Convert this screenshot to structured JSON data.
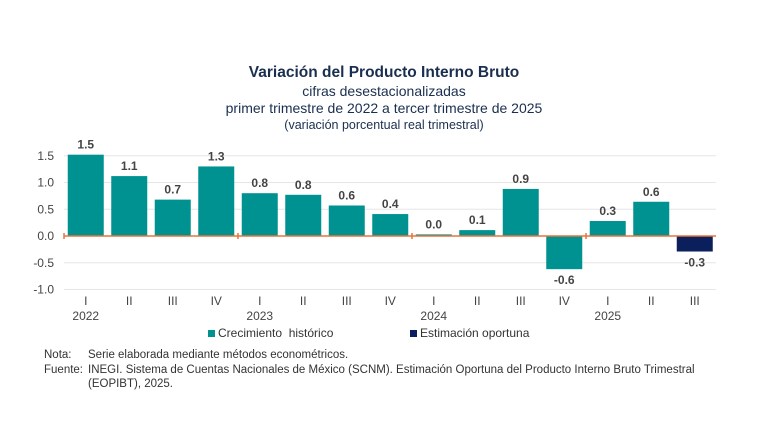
{
  "title": "Variación del Producto Interno Bruto",
  "subtitle1": "cifras desestacionalizadas",
  "subtitle2": "primer trimestre de 2022 a tercer trimestre de 2025",
  "subtitle3": "(variación porcentual real trimestral)",
  "chart_data": {
    "type": "bar",
    "categories": [
      "I",
      "II",
      "III",
      "IV",
      "I",
      "II",
      "III",
      "IV",
      "I",
      "II",
      "III",
      "IV",
      "I",
      "II",
      "III"
    ],
    "years": [
      {
        "label": "2022",
        "index": 0
      },
      {
        "label": "2023",
        "index": 4
      },
      {
        "label": "2024",
        "index": 8
      },
      {
        "label": "2025",
        "index": 12
      }
    ],
    "values": [
      1.5,
      1.1,
      0.7,
      1.3,
      0.8,
      0.8,
      0.6,
      0.4,
      0.0,
      0.1,
      0.9,
      -0.6,
      0.3,
      0.6,
      -0.3
    ],
    "heights": [
      1.52,
      1.12,
      0.68,
      1.3,
      0.8,
      0.77,
      0.57,
      0.41,
      0.03,
      0.11,
      0.88,
      -0.62,
      0.28,
      0.64,
      -0.29
    ],
    "series_kind": [
      "h",
      "h",
      "h",
      "h",
      "h",
      "h",
      "h",
      "h",
      "h",
      "h",
      "h",
      "h",
      "h",
      "h",
      "e"
    ],
    "ylim": [
      -1.0,
      1.5
    ],
    "yticks": [
      "1.5",
      "1.0",
      "0.5",
      "0.0",
      "-0.5",
      "-1.0"
    ],
    "grid": true,
    "legend": [
      {
        "name": "Crecimiento  histórico",
        "color": "#009191"
      },
      {
        "name": "Estimación oportuna",
        "color": "#0b1f5c"
      }
    ],
    "legend_position": "bottom",
    "zero_line_color": "#e8743b"
  },
  "notes": {
    "nota_label": "Nota:",
    "nota_text": "Serie elaborada mediante métodos econométricos.",
    "fuente_label": "Fuente:",
    "fuente_text": "INEGI. Sistema de Cuentas Nacionales de México (SCNM). Estimación Oportuna del Producto Interno Bruto Trimestral",
    "fuente_text2": "(EOPIBT), 2025."
  }
}
